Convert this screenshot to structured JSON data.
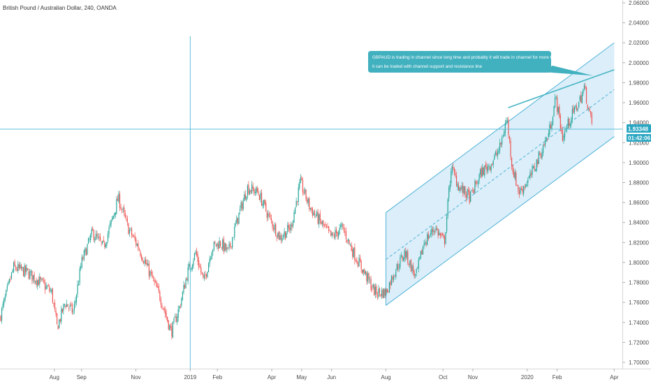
{
  "chart_data": {
    "type": "candlestick",
    "title": "British Pound / Australian Dollar, 240, OANDA",
    "ylim": [
      1.7,
      2.06
    ],
    "y_ticks": [
      "2.06000",
      "2.04000",
      "2.02000",
      "2.00000",
      "1.98000",
      "1.96000",
      "1.94000",
      "1.92000",
      "1.90000",
      "1.88000",
      "1.86000",
      "1.84000",
      "1.82000",
      "1.80000",
      "1.78000",
      "1.76000",
      "1.74000",
      "1.72000",
      "1.70000"
    ],
    "x_ticks": [
      {
        "label": "Aug",
        "x": 3.5
      },
      {
        "label": "Sep",
        "x": 4.5
      },
      {
        "label": "Nov",
        "x": 6.5
      },
      {
        "label": "2019",
        "x": 8.5
      },
      {
        "label": "Feb",
        "x": 9.5
      },
      {
        "label": "Apr",
        "x": 11.5
      },
      {
        "label": "May",
        "x": 12.6
      },
      {
        "label": "Jun",
        "x": 13.7
      },
      {
        "label": "Aug",
        "x": 15.7
      },
      {
        "label": "Oct",
        "x": 17.8
      },
      {
        "label": "Nov",
        "x": 18.9
      },
      {
        "label": "2020",
        "x": 20.9
      },
      {
        "label": "Feb",
        "x": 22.0
      },
      {
        "label": "Apr",
        "x": 24.1
      }
    ],
    "xlim": [
      1.5,
      24.4
    ],
    "price_path": [
      [
        1.5,
        1.745
      ],
      [
        2.0,
        1.795
      ],
      [
        2.5,
        1.79
      ],
      [
        3.0,
        1.78
      ],
      [
        3.4,
        1.77
      ],
      [
        3.6,
        1.735
      ],
      [
        3.9,
        1.76
      ],
      [
        4.2,
        1.75
      ],
      [
        4.5,
        1.8
      ],
      [
        4.9,
        1.83
      ],
      [
        5.3,
        1.815
      ],
      [
        5.6,
        1.84
      ],
      [
        5.85,
        1.865
      ],
      [
        6.2,
        1.835
      ],
      [
        6.6,
        1.815
      ],
      [
        7.0,
        1.79
      ],
      [
        7.4,
        1.765
      ],
      [
        7.8,
        1.73
      ],
      [
        8.1,
        1.755
      ],
      [
        8.4,
        1.79
      ],
      [
        8.7,
        1.81
      ],
      [
        9.0,
        1.78
      ],
      [
        9.3,
        1.815
      ],
      [
        9.6,
        1.82
      ],
      [
        9.9,
        1.81
      ],
      [
        10.2,
        1.84
      ],
      [
        10.6,
        1.875
      ],
      [
        11.0,
        1.87
      ],
      [
        11.4,
        1.845
      ],
      [
        11.8,
        1.825
      ],
      [
        12.2,
        1.835
      ],
      [
        12.55,
        1.88
      ],
      [
        12.9,
        1.855
      ],
      [
        13.3,
        1.84
      ],
      [
        13.7,
        1.825
      ],
      [
        14.1,
        1.835
      ],
      [
        14.5,
        1.81
      ],
      [
        14.9,
        1.79
      ],
      [
        15.3,
        1.77
      ],
      [
        15.7,
        1.77
      ],
      [
        16.0,
        1.79
      ],
      [
        16.4,
        1.81
      ],
      [
        16.8,
        1.785
      ],
      [
        17.1,
        1.82
      ],
      [
        17.5,
        1.835
      ],
      [
        17.85,
        1.82
      ],
      [
        18.1,
        1.895
      ],
      [
        18.4,
        1.875
      ],
      [
        18.8,
        1.865
      ],
      [
        19.2,
        1.89
      ],
      [
        19.6,
        1.9
      ],
      [
        19.9,
        1.915
      ],
      [
        20.15,
        1.945
      ],
      [
        20.35,
        1.895
      ],
      [
        20.6,
        1.87
      ],
      [
        21.0,
        1.885
      ],
      [
        21.4,
        1.91
      ],
      [
        21.7,
        1.93
      ],
      [
        21.95,
        1.965
      ],
      [
        22.2,
        1.925
      ],
      [
        22.5,
        1.945
      ],
      [
        22.8,
        1.96
      ],
      [
        23.0,
        1.975
      ],
      [
        23.3,
        1.935
      ]
    ],
    "channel": {
      "x_start": 15.7,
      "x_end": 24.1,
      "upper": [
        1.85,
        2.02
      ],
      "lower": [
        1.757,
        1.926
      ],
      "mid": [
        1.803,
        1.973
      ]
    },
    "trendline": {
      "x": [
        20.2,
        24.1
      ],
      "y": [
        1.955,
        1.993
      ]
    },
    "crosshair": {
      "x": 8.5,
      "y": 1.93348
    },
    "last_price": "1.93348",
    "countdown": "01:42:06",
    "annotation": {
      "line1": "GBPAUD is trading in channel since long time and probably it will trade in channel for more time .",
      "line2": "it can be traded with channel support and resistance line"
    },
    "grid": false,
    "colors": {
      "up": "#26a69a",
      "down": "#ef5350",
      "channel_line": "#4fb3d9",
      "channel_fill": "#cfe8f7",
      "trendline": "#48b5c4",
      "note_bg": "#41b0bf",
      "crosshair": "#5fbfdc",
      "badge": "#2aa6c2",
      "text": "#333333"
    }
  }
}
